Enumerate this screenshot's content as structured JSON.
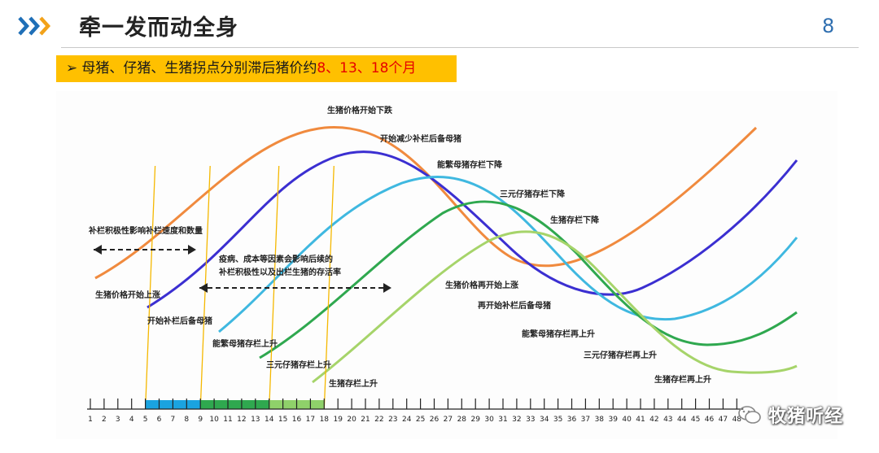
{
  "header": {
    "title": "牵一发而动全身",
    "page_number": "8",
    "accent_color": "#1f6fb7",
    "chevron_colors": [
      "#1f6fb7",
      "#1f6fb7",
      "#f2a21a"
    ]
  },
  "subtitle": {
    "bullet": "➢",
    "text_main": "母猪、仔猪、生猪拐点分别滞后猪价约",
    "text_highlight": "8、13、18个月",
    "background": "#ffc000",
    "highlight_color": "#e60000"
  },
  "diagram": {
    "curve_colors": {
      "hog_price": "#f08a3e",
      "replacement_gilts": "#3b2fd1",
      "breeding_sows": "#3fb8e0",
      "piglets": "#2fa84f",
      "market_hogs": "#a6d46a"
    },
    "labels": {
      "price_start_rise": "生猪价格开始上涨",
      "price_start_fall": "生猪价格开始下跌",
      "reduce_replacement": "开始减少补栏后备母猪",
      "sow_inventory_fall": "能繁母猪存栏下降",
      "piglet_inventory_fall": "三元仔猪存栏下降",
      "hog_inventory_fall": "生猪存栏下降",
      "restock_note": "补栏积极性影响补栏速度和数量",
      "disease_note_line1": "疫病、成本等因素会影响后续的",
      "disease_note_line2": "补栏积极性以及出栏生猪的存活率",
      "start_replacement": "开始补栏后备母猪",
      "sow_inventory_rise": "能繁母猪存栏上升",
      "piglet_inventory_rise": "三元仔猪存栏上升",
      "hog_inventory_rise": "生猪存栏上升",
      "price_rise_again": "生猪价格再开始上涨",
      "replacement_again": "再开始补栏后备母猪",
      "sow_rise_again": "能繁母猪存栏再上升",
      "piglet_rise_again": "三元仔猪存栏再上升",
      "hog_rise_again": "生猪存栏再上升"
    },
    "timeline": {
      "months": [
        "1",
        "2",
        "3",
        "4",
        "5",
        "6",
        "7",
        "8",
        "9",
        "10",
        "11",
        "12",
        "13",
        "14",
        "15",
        "16",
        "17",
        "18",
        "19",
        "20",
        "21",
        "22",
        "23",
        "24",
        "25",
        "26",
        "27",
        "28",
        "29",
        "30",
        "31",
        "32",
        "33",
        "34",
        "35",
        "36",
        "37",
        "38",
        "39",
        "40",
        "41",
        "42",
        "43",
        "44",
        "45",
        "46",
        "47",
        "48"
      ],
      "colored_segments": [
        {
          "from": 5,
          "to": 9,
          "color": "#1aa3e0"
        },
        {
          "from": 9,
          "to": 14,
          "color": "#2fa84f"
        },
        {
          "from": 14,
          "to": 18,
          "color": "#8fd16a"
        }
      ],
      "marker_months": [
        5,
        9,
        14,
        18
      ],
      "marker_color": "#f5b800"
    }
  },
  "watermark": {
    "text": "牧猪听经"
  }
}
